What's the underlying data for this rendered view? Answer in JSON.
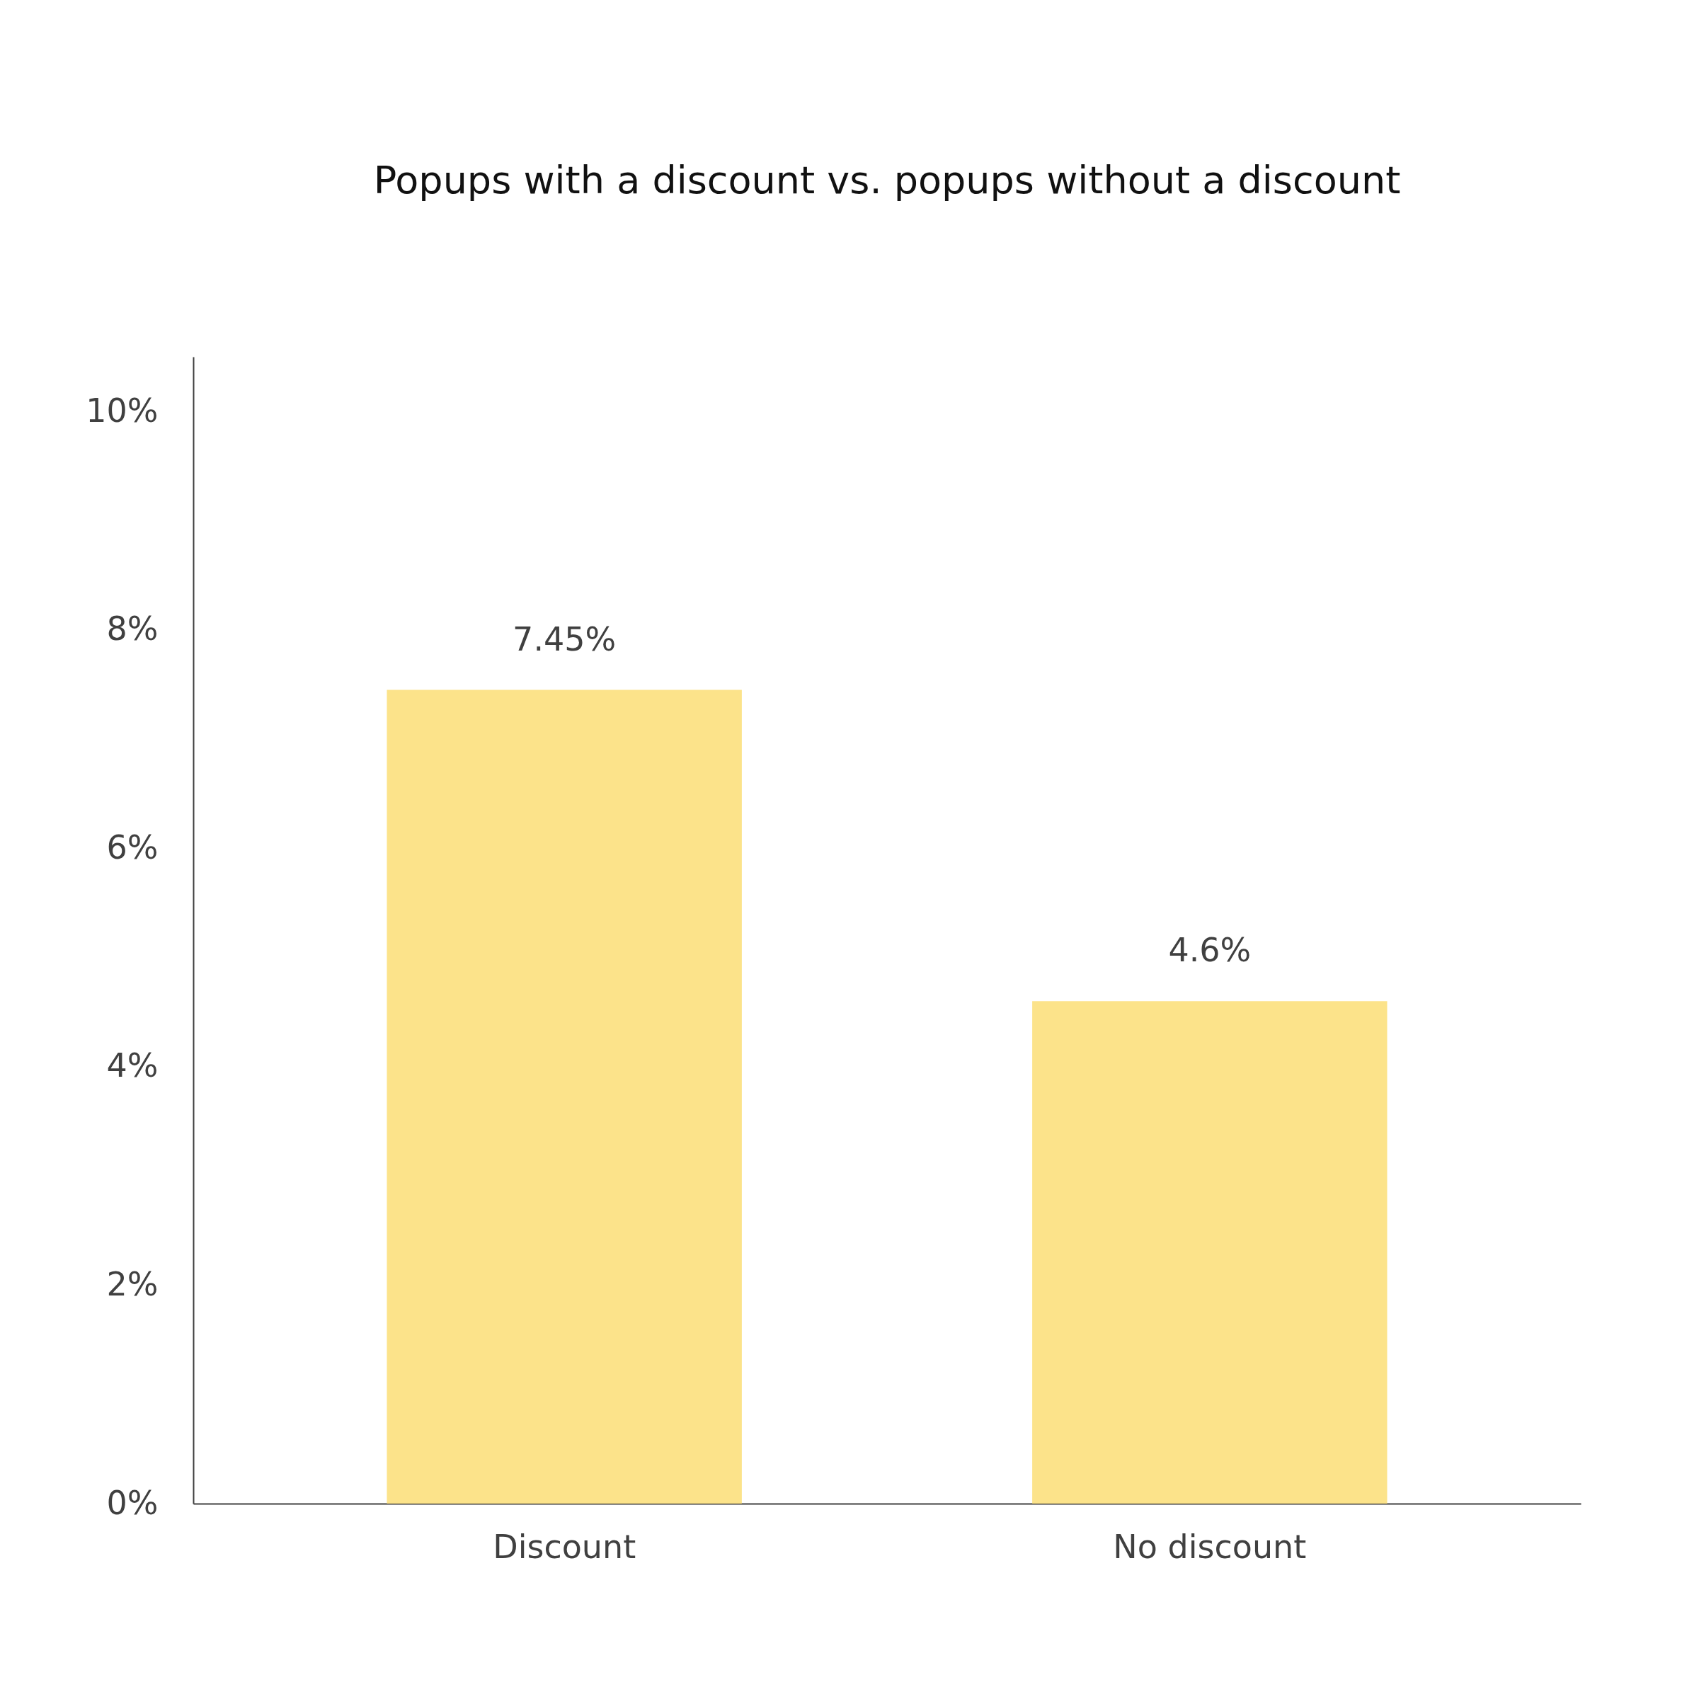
{
  "chart_data": {
    "type": "bar",
    "title": "Popups with a discount vs. popups without a discount",
    "categories": [
      "Discount",
      "No discount"
    ],
    "values": [
      7.45,
      4.6
    ],
    "color": "#fce38a",
    "value_labels": [
      "7.45%",
      "4.6%"
    ],
    "ylim": [
      0,
      10.5
    ],
    "yticks": [
      {
        "value": 0,
        "label": "0%"
      },
      {
        "value": 2,
        "label": "2%"
      },
      {
        "value": 4,
        "label": "4%"
      },
      {
        "value": 6,
        "label": "6%"
      },
      {
        "value": 8,
        "label": "8%"
      },
      {
        "value": 10,
        "label": "10%"
      }
    ],
    "grid": false
  }
}
